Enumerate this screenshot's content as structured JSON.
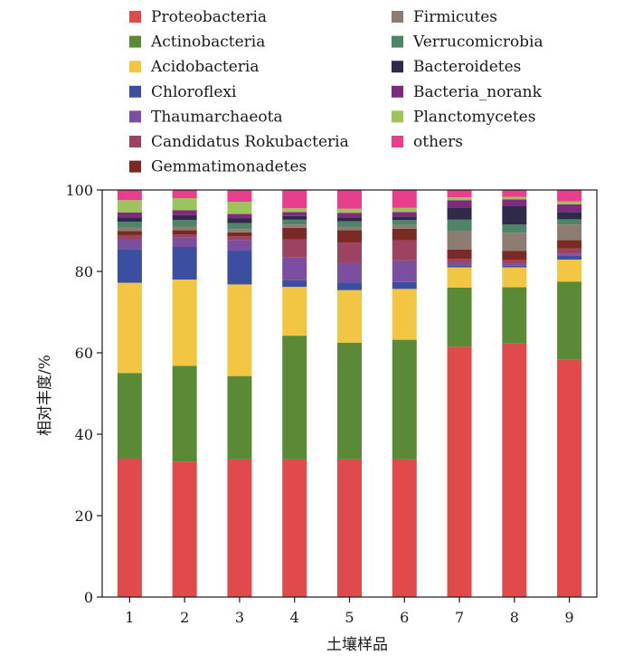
{
  "chart_data": {
    "type": "bar",
    "stacked": true,
    "categories": [
      "1",
      "2",
      "3",
      "4",
      "5",
      "6",
      "7",
      "8",
      "9"
    ],
    "xlabel": "土壤样品",
    "ylabel": "相对丰度/%",
    "ylim": [
      0,
      100
    ],
    "yticks": [
      0,
      20,
      40,
      60,
      80,
      100
    ],
    "grid": false,
    "legend_position": "top",
    "series": [
      {
        "name": "Proteobacteria",
        "color": "#e04a4a",
        "values": [
          34.0,
          33.3,
          33.8,
          33.8,
          33.8,
          33.8,
          61.5,
          62.3,
          58.3
        ]
      },
      {
        "name": "Actinobacteria",
        "color": "#5b8a36",
        "values": [
          21.0,
          23.5,
          20.5,
          30.4,
          28.7,
          29.4,
          14.5,
          13.8,
          19.2
        ]
      },
      {
        "name": "Acidobacteria",
        "color": "#f2c642",
        "values": [
          22.2,
          21.2,
          22.5,
          12.0,
          12.9,
          12.5,
          5.0,
          4.9,
          5.4
        ]
      },
      {
        "name": "Chloroflexi",
        "color": "#3b4ea0",
        "values": [
          8.3,
          8.0,
          8.3,
          1.6,
          1.9,
          1.7,
          0.5,
          0.4,
          0.9
        ]
      },
      {
        "name": "Thaumarchaeota",
        "color": "#7b4ea0",
        "values": [
          2.5,
          2.3,
          2.6,
          5.6,
          4.8,
          5.3,
          0.6,
          0.5,
          0.6
        ]
      },
      {
        "name": "Candidatus Rokubacteria",
        "color": "#9e4262",
        "values": [
          0.9,
          0.8,
          0.9,
          4.5,
          5.0,
          4.9,
          1.0,
          0.9,
          1.2
        ]
      },
      {
        "name": "Gemmatimonadetes",
        "color": "#7a2a22",
        "values": [
          1.0,
          1.0,
          1.0,
          2.8,
          3.0,
          2.9,
          2.3,
          2.2,
          2.1
        ]
      },
      {
        "name": "Firmicutes",
        "color": "#8e7c73",
        "values": [
          0.8,
          0.9,
          0.8,
          0.8,
          0.9,
          0.9,
          4.6,
          4.5,
          3.8
        ]
      },
      {
        "name": "Verrucomicrobia",
        "color": "#4f8467",
        "values": [
          1.5,
          1.6,
          1.5,
          1.2,
          1.3,
          1.2,
          2.7,
          2.0,
          1.3
        ]
      },
      {
        "name": "Bacteroidetes",
        "color": "#2e2a4a",
        "values": [
          1.1,
          1.2,
          1.1,
          0.9,
          1.0,
          0.9,
          3.0,
          4.5,
          1.8
        ]
      },
      {
        "name": "Bacteria_norank",
        "color": "#7e2a7e",
        "values": [
          1.2,
          1.2,
          1.1,
          1.0,
          1.1,
          1.1,
          1.8,
          1.7,
          1.9
        ]
      },
      {
        "name": "Planctomycetes",
        "color": "#9cc45a",
        "values": [
          3.0,
          3.0,
          3.0,
          0.9,
          1.0,
          1.0,
          0.7,
          0.6,
          0.7
        ]
      },
      {
        "name": "others",
        "color": "#e83e8c",
        "values": [
          2.5,
          2.0,
          2.9,
          4.5,
          4.6,
          4.4,
          1.8,
          1.7,
          2.8
        ]
      }
    ]
  }
}
